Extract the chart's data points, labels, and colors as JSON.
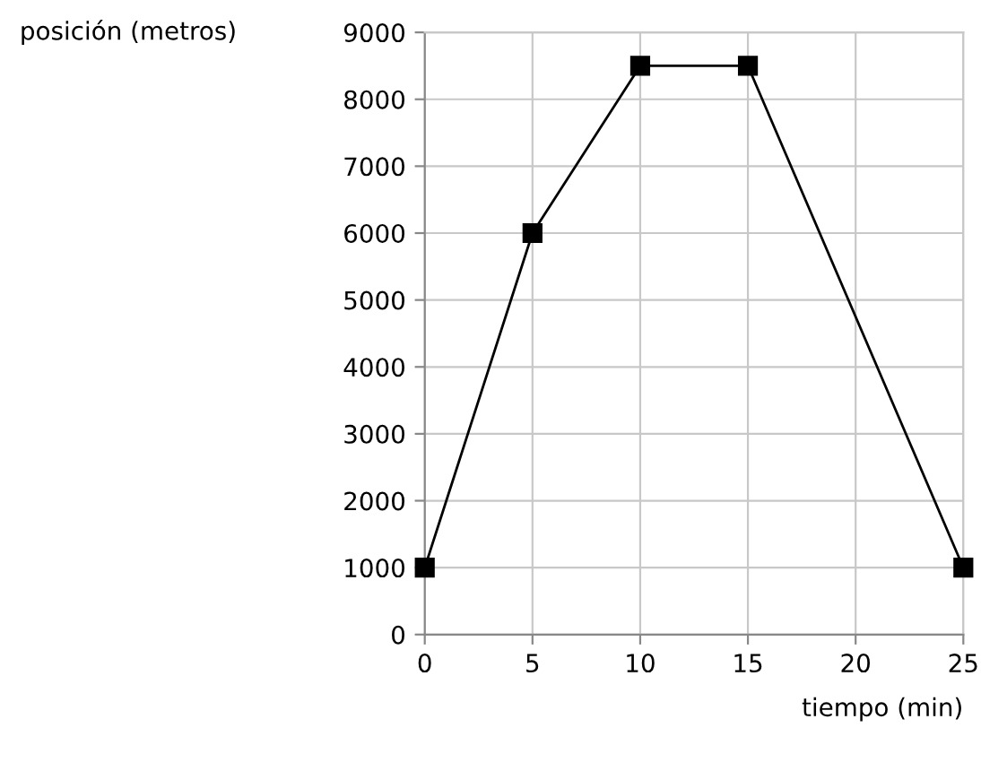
{
  "chart_data": {
    "type": "line",
    "xlabel": "tiempo (min)",
    "ylabel": "posición (metros)",
    "x": [
      0,
      5,
      10,
      15,
      25
    ],
    "series": [
      {
        "color": "#000000",
        "values": [
          1000,
          6000,
          8500,
          8500,
          1000
        ]
      }
    ],
    "xlim": [
      0,
      25
    ],
    "xticks": [
      0,
      5,
      10,
      15,
      20,
      25
    ],
    "ylim": [
      0,
      9000
    ],
    "yticks": [
      0,
      1000,
      2000,
      3000,
      4000,
      5000,
      6000,
      7000,
      8000,
      9000
    ],
    "grid": true,
    "marker": "square",
    "line_style": "solid"
  }
}
